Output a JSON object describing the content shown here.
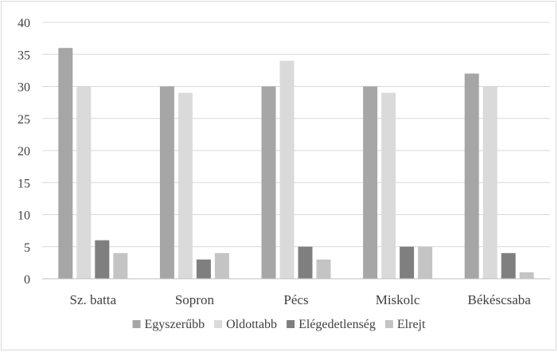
{
  "chart_data": {
    "type": "bar",
    "title": "",
    "xlabel": "",
    "ylabel": "",
    "ylim": [
      0,
      40
    ],
    "yticks": [
      "0",
      "5",
      "10",
      "15",
      "20",
      "25",
      "30",
      "35",
      "40"
    ],
    "grid": true,
    "legend_position": "bottom",
    "categories": [
      "Sz. batta",
      "Sopron",
      "Pécs",
      "Miskolc",
      "Békéscsaba"
    ],
    "series": [
      {
        "name": "Egyszerűbb",
        "color": "#a6a6a6",
        "values": [
          36,
          30,
          30,
          30,
          32
        ]
      },
      {
        "name": "Oldottabb",
        "color": "#dadada",
        "values": [
          30,
          29,
          34,
          29,
          30
        ]
      },
      {
        "name": "Elégedetlenség",
        "color": "#7f7f7f",
        "values": [
          6,
          3,
          5,
          5,
          4
        ]
      },
      {
        "name": "Elrejt",
        "color": "#c4c4c4",
        "values": [
          4,
          4,
          3,
          5,
          1
        ]
      }
    ]
  }
}
